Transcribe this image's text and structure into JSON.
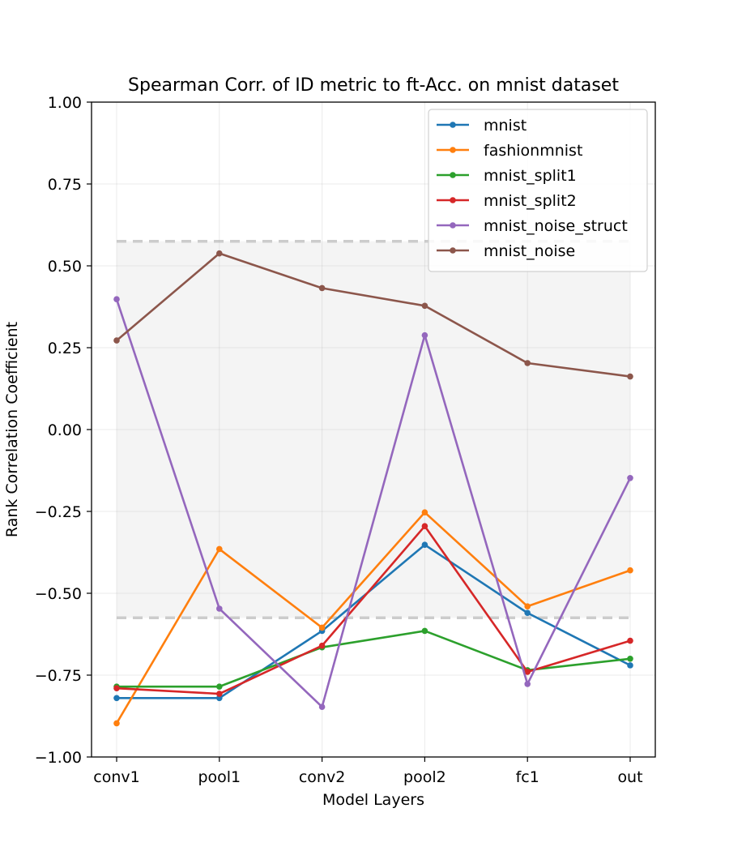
{
  "chart_data": {
    "type": "line",
    "title": "Spearman Corr. of ID metric to ft-Acc. on mnist dataset",
    "xlabel": "Model Layers",
    "ylabel": "Rank Correlation Coefficient",
    "categories": [
      "conv1",
      "pool1",
      "conv2",
      "pool2",
      "fc1",
      "out"
    ],
    "ylim": [
      -1.0,
      1.0
    ],
    "yticks": [
      "−1.00",
      "−0.75",
      "−0.50",
      "−0.25",
      "0.00",
      "0.25",
      "0.50",
      "0.75",
      "1.00"
    ],
    "ytick_values": [
      -1.0,
      -0.75,
      -0.5,
      -0.25,
      0.0,
      0.25,
      0.5,
      0.75,
      1.0
    ],
    "grid": true,
    "legend_position": "upper-right",
    "band": {
      "lower": -0.575,
      "upper": 0.575,
      "fill": "#f4f4f4",
      "line_color": "#cccccc"
    },
    "series": [
      {
        "name": "mnist",
        "color": "#1f77b4",
        "values": [
          -0.82,
          -0.82,
          -0.615,
          -0.352,
          -0.56,
          -0.72
        ]
      },
      {
        "name": "fashionmnist",
        "color": "#ff7f0e",
        "values": [
          -0.897,
          -0.365,
          -0.605,
          -0.253,
          -0.54,
          -0.43
        ]
      },
      {
        "name": "mnist_split1",
        "color": "#2ca02c",
        "values": [
          -0.785,
          -0.785,
          -0.665,
          -0.615,
          -0.735,
          -0.7
        ]
      },
      {
        "name": "mnist_split2",
        "color": "#d62728",
        "values": [
          -0.79,
          -0.807,
          -0.66,
          -0.295,
          -0.74,
          -0.645
        ]
      },
      {
        "name": "mnist_noise_struct",
        "color": "#9467bd",
        "values": [
          0.398,
          -0.547,
          -0.847,
          0.288,
          -0.777,
          -0.148
        ]
      },
      {
        "name": "mnist_noise",
        "color": "#8c564b",
        "values": [
          0.272,
          0.538,
          0.432,
          0.378,
          0.203,
          0.162
        ]
      }
    ]
  }
}
